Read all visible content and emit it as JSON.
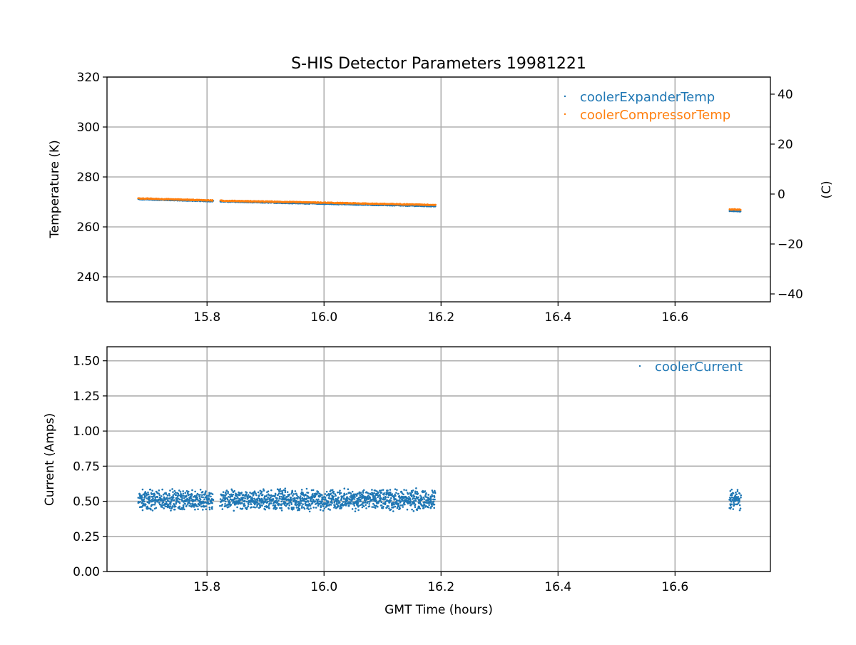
{
  "chart_data": [
    {
      "type": "scatter",
      "title": "S-HIS Detector Parameters 19981221",
      "xlabel": "",
      "ylabel": "Temperature (K)",
      "y2label": "(C)",
      "xlim": [
        15.629,
        16.763
      ],
      "ylim": [
        230,
        320
      ],
      "y2lim": [
        -43.15,
        46.85
      ],
      "xticks": [
        "15.8",
        "16.0",
        "16.2",
        "16.4",
        "16.6"
      ],
      "xtick_values": [
        15.8,
        16.0,
        16.2,
        16.4,
        16.6
      ],
      "yticks": [
        "240",
        "260",
        "280",
        "300",
        "320"
      ],
      "ytick_values": [
        240,
        260,
        280,
        300,
        320
      ],
      "y2ticks": [
        "−40",
        "−20",
        "0",
        "20",
        "40"
      ],
      "y2tick_values": [
        -40,
        -20,
        0,
        20,
        40
      ],
      "grid": true,
      "legend": "top-right",
      "series": [
        {
          "name": "coolerExpanderTemp",
          "color": "#1f77b4",
          "segments": [
            [
              15.683,
              15.81,
              271.1,
              270.3
            ],
            [
              15.823,
              16.19,
              270.2,
              268.3
            ],
            [
              16.693,
              16.712,
              266.4,
              266.3
            ]
          ]
        },
        {
          "name": "coolerCompressorTemp",
          "color": "#ff7f0e",
          "segments": [
            [
              15.683,
              15.81,
              271.4,
              270.6
            ],
            [
              15.823,
              16.19,
              270.5,
              268.8
            ],
            [
              16.693,
              16.712,
              267.0,
              266.9
            ]
          ]
        }
      ]
    },
    {
      "type": "scatter",
      "title": "",
      "xlabel": "GMT Time (hours)",
      "ylabel": "Current (Amps)",
      "xlim": [
        15.629,
        16.763
      ],
      "ylim": [
        0,
        1.6
      ],
      "xticks": [
        "15.8",
        "16.0",
        "16.2",
        "16.4",
        "16.6"
      ],
      "xtick_values": [
        15.8,
        16.0,
        16.2,
        16.4,
        16.6
      ],
      "yticks": [
        "0.00",
        "0.25",
        "0.50",
        "0.75",
        "1.00",
        "1.25",
        "1.50"
      ],
      "ytick_values": [
        0,
        0.25,
        0.5,
        0.75,
        1.0,
        1.25,
        1.5
      ],
      "grid": true,
      "legend": "top-right",
      "series": [
        {
          "name": "coolerCurrent",
          "color": "#1f77b4",
          "mean": 0.51,
          "spread": 0.065,
          "segments": [
            [
              15.683,
              15.81
            ],
            [
              15.823,
              16.19
            ],
            [
              16.693,
              16.712
            ]
          ]
        }
      ]
    }
  ]
}
